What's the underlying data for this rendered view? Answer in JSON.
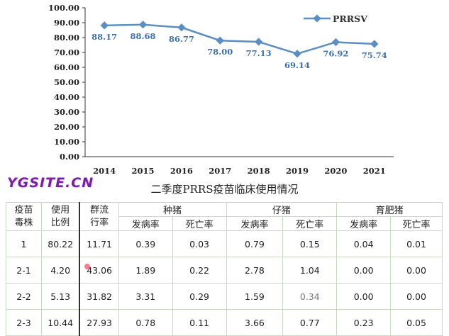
{
  "chart_data": {
    "type": "line",
    "categories": [
      "2014",
      "2015",
      "2016",
      "2017",
      "2018",
      "2019",
      "2020",
      "2021"
    ],
    "series": [
      {
        "name": "PRRSV",
        "values": [
          88.17,
          88.68,
          86.77,
          78.0,
          77.13,
          69.14,
          76.92,
          75.74
        ],
        "labels": [
          "88.17",
          "88.68",
          "86.77",
          "78.00",
          "77.13",
          "69.14",
          "76.92",
          "75.74"
        ]
      }
    ],
    "yticks": [
      "0.00",
      "10.00",
      "20.00",
      "30.00",
      "40.00",
      "50.00",
      "60.00",
      "70.00",
      "80.00",
      "90.00",
      "100.00"
    ],
    "ylim": [
      0,
      100
    ],
    "grid": false,
    "legend": "top-right",
    "color": "#5b8fc4",
    "label_color": "#3d6fa8"
  },
  "watermark": "YGSITE.CN",
  "table": {
    "title": "二季度PRRS疫苗临床使用情况",
    "header": {
      "strain": "疫苗毒株",
      "ratio": "使用比例",
      "prevalence": "群流行率",
      "groups": [
        "种猪",
        "仔猪",
        "育肥猪"
      ],
      "sub": [
        "发病率",
        "死亡率",
        "发病率",
        "死亡率",
        "发病率",
        "死亡率"
      ]
    },
    "rows": [
      [
        "1",
        "80.22",
        "11.71",
        "0.39",
        "0.03",
        "0.79",
        "0.15",
        "0.04",
        "0.01"
      ],
      [
        "2-1",
        "4.20",
        "43.06",
        "1.89",
        "0.22",
        "2.78",
        "1.04",
        "0.00",
        "0.00"
      ],
      [
        "2-2",
        "5.13",
        "31.82",
        "3.31",
        "0.29",
        "1.59",
        "0.34",
        "0.00",
        "0.00"
      ],
      [
        "2-3",
        "10.44",
        "27.93",
        "0.78",
        "0.11",
        "3.66",
        "0.77",
        "0.23",
        "0.05"
      ]
    ]
  }
}
